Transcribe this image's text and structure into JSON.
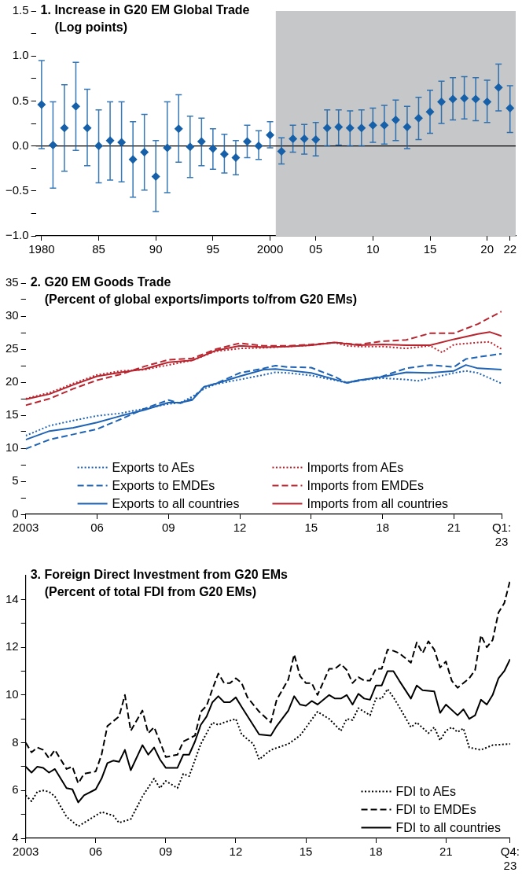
{
  "chart_data": [
    {
      "type": "scatter",
      "title": "1. Increase in G20 EM Global Trade",
      "subtitle": "(Log points)",
      "categories": [
        "1980",
        null,
        null,
        null,
        null,
        "85",
        null,
        null,
        null,
        null,
        "90",
        null,
        null,
        null,
        null,
        "95",
        null,
        null,
        null,
        null,
        "2000",
        null,
        null,
        null,
        "05",
        null,
        null,
        null,
        null,
        "10",
        null,
        null,
        null,
        null,
        "15",
        null,
        null,
        null,
        null,
        "20",
        null,
        "22"
      ],
      "series": [
        {
          "color": "#1560a8",
          "values": [
            0.46,
            0.01,
            0.2,
            0.44,
            0.2,
            0.0,
            0.06,
            0.04,
            -0.15,
            -0.07,
            -0.34,
            -0.02,
            0.19,
            -0.01,
            0.05,
            -0.03,
            -0.09,
            -0.13,
            0.05,
            0.0,
            0.12,
            -0.06,
            0.08,
            0.08,
            0.07,
            0.2,
            0.21,
            0.2,
            0.2,
            0.23,
            0.23,
            0.29,
            0.21,
            0.31,
            0.38,
            0.49,
            0.52,
            0.53,
            0.52,
            0.49,
            0.65,
            0.42
          ],
          "errors": [
            [
              -0.03,
              0.95
            ],
            [
              -0.47,
              0.49
            ],
            [
              -0.28,
              0.68
            ],
            [
              -0.05,
              0.93
            ],
            [
              -0.22,
              0.63
            ],
            [
              -0.41,
              0.4
            ],
            [
              -0.38,
              0.49
            ],
            [
              -0.4,
              0.49
            ],
            [
              -0.57,
              0.27
            ],
            [
              -0.49,
              0.35
            ],
            [
              -0.73,
              0.06
            ],
            [
              -0.52,
              0.49
            ],
            [
              -0.18,
              0.57
            ],
            [
              -0.35,
              0.33
            ],
            [
              -0.22,
              0.31
            ],
            [
              -0.26,
              0.19
            ],
            [
              -0.3,
              0.13
            ],
            [
              -0.32,
              0.06
            ],
            [
              -0.13,
              0.23
            ],
            [
              -0.15,
              0.17
            ],
            [
              -0.02,
              0.27
            ],
            [
              -0.2,
              0.09
            ],
            [
              -0.07,
              0.23
            ],
            [
              -0.09,
              0.24
            ],
            [
              -0.11,
              0.26
            ],
            [
              0.0,
              0.4
            ],
            [
              0.01,
              0.4
            ],
            [
              0.0,
              0.39
            ],
            [
              0.0,
              0.4
            ],
            [
              0.04,
              0.42
            ],
            [
              0.02,
              0.45
            ],
            [
              0.06,
              0.51
            ],
            [
              -0.03,
              0.44
            ],
            [
              0.07,
              0.54
            ],
            [
              0.14,
              0.62
            ],
            [
              0.25,
              0.72
            ],
            [
              0.29,
              0.76
            ],
            [
              0.3,
              0.77
            ],
            [
              0.28,
              0.76
            ],
            [
              0.26,
              0.73
            ],
            [
              0.39,
              0.91
            ],
            [
              0.15,
              0.67
            ]
          ]
        }
      ],
      "marker": "diamond",
      "grid": false,
      "legend": false,
      "ylim": [
        -1,
        1.5
      ],
      "yticks": [
        {
          "value": -1,
          "label": "−1.0"
        },
        {
          "value": -0.75,
          "label": null
        },
        {
          "value": -0.5,
          "label": "−0.5"
        },
        {
          "value": -0.25,
          "label": null
        },
        {
          "value": 0,
          "label": "0.0"
        },
        {
          "value": 0.25,
          "label": null
        },
        0.5,
        {
          "value": 0.75,
          "label": null
        },
        {
          "value": 1,
          "label": "1.0"
        },
        {
          "value": 1.25,
          "label": null
        },
        1.5
      ],
      "ref_lines": [
        {
          "axis": "y",
          "value": 0,
          "color": "#000000"
        }
      ],
      "bands": [
        {
          "axis": "x",
          "from": "2000",
          "to": "22",
          "color": "#c6c7c9"
        }
      ]
    },
    {
      "type": "line",
      "title": "2. G20 EM Goods Trade",
      "subtitle": "(Percent of global exports/imports to/from G20 EMs)",
      "series": [
        {
          "name": "Exports to AEs",
          "color": "#1f63b4",
          "line_style": "dotted",
          "x": [
            2003,
            2004,
            2005,
            2006,
            2007,
            2008,
            2009,
            2009.5,
            2010,
            2010.5,
            2011,
            2012,
            2013,
            2013.5,
            2014,
            2015,
            2016,
            2016.5,
            2017,
            2018,
            2019,
            2019.5,
            2020,
            2021,
            2021.5,
            2022,
            2023
          ],
          "values": [
            11.9,
            13.4,
            14.2,
            14.9,
            15.3,
            16.0,
            16.7,
            16.9,
            17.8,
            19.0,
            19.7,
            20.4,
            21.1,
            21.5,
            21.4,
            21.0,
            20.3,
            19.9,
            20.3,
            20.6,
            20.4,
            20.2,
            20.6,
            21.4,
            21.7,
            21.4,
            19.8
          ]
        },
        {
          "name": "Exports to EMDEs",
          "color": "#1f63b4",
          "line_style": "dashed",
          "x": [
            2003,
            2004,
            2005,
            2006,
            2007,
            2008,
            2009,
            2009.5,
            2010,
            2010.5,
            2011,
            2012,
            2013,
            2013.5,
            2014,
            2015,
            2016,
            2016.5,
            2017,
            2018,
            2019,
            2020,
            2021,
            2021.5,
            2022,
            2023
          ],
          "values": [
            9.9,
            11.3,
            12.1,
            12.9,
            14.4,
            16.0,
            17.3,
            16.8,
            17.5,
            19.3,
            19.8,
            21.4,
            22.1,
            22.5,
            22.3,
            22.2,
            20.8,
            19.9,
            20.2,
            20.9,
            22.1,
            22.6,
            22.3,
            23.5,
            23.8,
            24.3
          ]
        },
        {
          "name": "Exports to all countries",
          "color": "#1f63b4",
          "line_style": "solid",
          "x": [
            2003,
            2004,
            2005,
            2006,
            2007,
            2008,
            2009,
            2009.5,
            2010,
            2010.5,
            2011,
            2012,
            2013,
            2013.5,
            2014,
            2015,
            2016,
            2016.5,
            2017,
            2018,
            2019,
            2020,
            2021,
            2021.5,
            2022,
            2023
          ],
          "values": [
            11.3,
            12.6,
            13.1,
            13.9,
            14.9,
            15.8,
            16.9,
            16.9,
            17.3,
            19.3,
            19.8,
            20.9,
            21.9,
            22.0,
            21.8,
            21.4,
            20.4,
            19.9,
            20.3,
            20.8,
            21.5,
            21.4,
            21.7,
            22.6,
            22.1,
            21.9
          ]
        },
        {
          "name": "Imports from AEs",
          "color": "#b8252f",
          "line_style": "dotted",
          "x": [
            2003,
            2004,
            2005,
            2006,
            2007,
            2008,
            2009,
            2010,
            2011,
            2012,
            2013,
            2014,
            2015,
            2016,
            2016.5,
            2017,
            2018,
            2019,
            2020,
            2020.5,
            2021,
            2022,
            2022.5,
            2023
          ],
          "values": [
            17.5,
            18.4,
            19.8,
            21.1,
            21.7,
            21.9,
            22.6,
            23.3,
            24.7,
            25.1,
            25.2,
            25.4,
            25.6,
            26.0,
            25.5,
            25.4,
            25.4,
            25.1,
            25.5,
            24.5,
            25.7,
            26.0,
            26.1,
            25.0
          ]
        },
        {
          "name": "Imports from EMDEs",
          "color": "#b8252f",
          "line_style": "dashed",
          "x": [
            2003,
            2004,
            2005,
            2006,
            2007,
            2008,
            2009,
            2010,
            2011,
            2012,
            2013,
            2014,
            2015,
            2016,
            2017,
            2018,
            2019,
            2020,
            2021,
            2022,
            2023
          ],
          "values": [
            16.5,
            17.5,
            19.0,
            20.3,
            21.2,
            22.4,
            23.4,
            23.6,
            25.0,
            25.9,
            25.5,
            25.5,
            25.7,
            26.0,
            25.7,
            26.2,
            26.4,
            27.4,
            27.4,
            28.8,
            30.7
          ]
        },
        {
          "name": "Imports from all countries",
          "color": "#b8252f",
          "line_style": "solid",
          "x": [
            2003,
            2004,
            2005,
            2006,
            2007,
            2008,
            2009,
            2010,
            2011,
            2012,
            2013,
            2014,
            2015,
            2016,
            2017,
            2018,
            2019,
            2020,
            2021,
            2022,
            2022.5,
            2023
          ],
          "values": [
            17.4,
            18.2,
            19.6,
            20.9,
            21.5,
            22.0,
            23.0,
            23.3,
            24.8,
            25.5,
            25.3,
            25.4,
            25.6,
            26.0,
            25.6,
            25.7,
            25.6,
            25.6,
            26.5,
            27.3,
            27.6,
            27.0
          ]
        }
      ],
      "grid": false,
      "legend": "bottom",
      "xlim": [
        2003,
        2023
      ],
      "xticks": [
        {
          "value": 2003,
          "label": "2003"
        },
        {
          "value": 2006,
          "label": "06"
        },
        {
          "value": 2009,
          "label": "09"
        },
        {
          "value": 2012,
          "label": "12"
        },
        {
          "value": 2015,
          "label": "15"
        },
        {
          "value": 2018,
          "label": "18"
        },
        {
          "value": 2021,
          "label": "21"
        },
        {
          "value": 2023,
          "label": "Q1: 23"
        }
      ],
      "ylim": [
        0,
        35
      ],
      "yticks": [
        0,
        {
          "value": 2.5,
          "label": null
        },
        5,
        {
          "value": 7.5,
          "label": null
        },
        10,
        {
          "value": 12.5,
          "label": null
        },
        15,
        {
          "value": 17.5,
          "label": null
        },
        20,
        {
          "value": 22.5,
          "label": null
        },
        25,
        {
          "value": 27.5,
          "label": null
        },
        30,
        {
          "value": 32.5,
          "label": null
        },
        35
      ]
    },
    {
      "type": "line",
      "title": "3. Foreign Direct Investment from G20 EMs",
      "subtitle": "(Percent of total FDI from G20 EMs)",
      "series": [
        {
          "name": "FDI to AEs",
          "color": "#000000",
          "line_style": "dotted",
          "x": [
            2003,
            2003.25,
            2003.5,
            2003.75,
            2004,
            2004.25,
            2004.75,
            2005.25,
            2005.5,
            2006,
            2006.25,
            2006.75,
            2007,
            2007.5,
            2008,
            2008.5,
            2008.75,
            2009,
            2009.5,
            2009.75,
            2010,
            2010.5,
            2011,
            2011.25,
            2011.5,
            2012,
            2012.25,
            2012.75,
            2013,
            2013.5,
            2014.25,
            2014.75,
            2015.5,
            2016,
            2016.5,
            2016.75,
            2017,
            2017.25,
            2017.75,
            2018,
            2018.25,
            2018.5,
            2018.75,
            2019,
            2019.5,
            2019.75,
            2020.25,
            2020.5,
            2020.75,
            2021,
            2021.25,
            2021.5,
            2021.75,
            2022,
            2022.5,
            2023,
            2023.75
          ],
          "values": [
            5.8,
            5.55,
            5.95,
            6.0,
            5.95,
            5.75,
            4.9,
            4.5,
            4.65,
            4.95,
            5.1,
            4.95,
            4.65,
            4.8,
            5.75,
            6.5,
            6.1,
            6.4,
            6.1,
            6.7,
            6.6,
            7.95,
            8.85,
            8.75,
            8.85,
            9.0,
            8.35,
            7.95,
            7.3,
            7.7,
            7.95,
            8.3,
            9.3,
            9.0,
            8.5,
            9.0,
            8.95,
            9.45,
            9.15,
            9.85,
            9.85,
            10.25,
            9.9,
            9.5,
            8.65,
            8.85,
            8.4,
            8.65,
            8.1,
            8.5,
            8.65,
            8.45,
            8.6,
            7.8,
            7.7,
            7.9,
            7.95
          ]
        },
        {
          "name": "FDI to EMDEs",
          "color": "#000000",
          "line_style": "dashed",
          "x": [
            2003,
            2003.25,
            2003.5,
            2003.75,
            2004,
            2004.25,
            2004.75,
            2005,
            2005.25,
            2005.5,
            2006,
            2006.25,
            2006.5,
            2007,
            2007.25,
            2007.5,
            2008,
            2008.25,
            2008.5,
            2008.75,
            2009,
            2009.5,
            2009.75,
            2010.25,
            2010.5,
            2010.75,
            2011,
            2011.25,
            2011.5,
            2011.75,
            2012,
            2012.25,
            2012.5,
            2013,
            2013.5,
            2013.75,
            2014.25,
            2014.5,
            2014.75,
            2015,
            2015.25,
            2015.5,
            2016,
            2016.25,
            2016.5,
            2016.75,
            2017,
            2017.25,
            2017.5,
            2017.75,
            2018,
            2018.25,
            2018.5,
            2018.75,
            2019,
            2019.5,
            2019.75,
            2020,
            2020.25,
            2020.5,
            2020.75,
            2021,
            2021.25,
            2021.5,
            2022,
            2022.25,
            2022.5,
            2022.75,
            2023,
            2023.25,
            2023.5,
            2023.75
          ],
          "values": [
            8.0,
            7.6,
            7.8,
            7.7,
            7.35,
            7.7,
            6.9,
            7.0,
            6.3,
            6.7,
            6.8,
            7.5,
            8.7,
            9.1,
            10.0,
            8.5,
            9.35,
            8.4,
            8.65,
            8.05,
            7.4,
            7.5,
            8.05,
            8.3,
            9.3,
            9.55,
            10.25,
            10.9,
            10.5,
            10.5,
            10.7,
            10.5,
            9.9,
            9.3,
            8.85,
            9.8,
            10.65,
            11.7,
            10.8,
            10.5,
            10.5,
            10.0,
            11.1,
            11.1,
            11.3,
            11.05,
            10.5,
            10.75,
            10.6,
            10.6,
            11.1,
            11.1,
            11.9,
            11.85,
            11.75,
            11.35,
            12.2,
            11.75,
            12.25,
            11.9,
            11.15,
            11.4,
            10.6,
            10.3,
            10.7,
            11.05,
            12.5,
            12.0,
            12.3,
            13.45,
            13.85,
            14.8
          ]
        },
        {
          "name": "FDI to all countries",
          "color": "#000000",
          "line_style": "solid",
          "x": [
            2003,
            2003.25,
            2003.5,
            2003.75,
            2004,
            2004.25,
            2004.75,
            2005,
            2005.25,
            2005.5,
            2006,
            2006.25,
            2006.5,
            2006.75,
            2007,
            2007.25,
            2007.5,
            2008,
            2008.25,
            2008.5,
            2008.75,
            2009,
            2009.5,
            2009.75,
            2010,
            2010.25,
            2010.5,
            2010.75,
            2011,
            2011.25,
            2011.5,
            2011.75,
            2012,
            2012.25,
            2013,
            2013.5,
            2013.75,
            2014.25,
            2014.5,
            2014.75,
            2015,
            2015.25,
            2015.5,
            2016,
            2016.25,
            2016.5,
            2016.75,
            2017,
            2017.25,
            2017.5,
            2017.75,
            2018,
            2018.25,
            2018.5,
            2018.75,
            2019,
            2019.5,
            2019.75,
            2020,
            2020.5,
            2020.75,
            2021,
            2021.5,
            2021.75,
            2022,
            2022.25,
            2022.5,
            2022.75,
            2023,
            2023.25,
            2023.5,
            2023.75
          ],
          "values": [
            7.0,
            6.75,
            7.0,
            6.95,
            6.75,
            6.9,
            6.1,
            6.05,
            5.5,
            5.8,
            6.05,
            6.5,
            7.15,
            7.25,
            7.2,
            7.7,
            6.85,
            7.9,
            7.5,
            7.8,
            7.3,
            6.95,
            6.95,
            7.5,
            7.5,
            8.05,
            8.75,
            9.1,
            9.7,
            9.95,
            9.7,
            9.7,
            9.9,
            9.5,
            8.35,
            8.3,
            8.7,
            9.35,
            9.95,
            9.6,
            9.55,
            9.75,
            9.6,
            10.0,
            9.85,
            9.85,
            10.0,
            9.6,
            10.05,
            9.85,
            9.8,
            10.4,
            10.4,
            11.0,
            11.0,
            10.6,
            9.85,
            10.4,
            10.2,
            10.15,
            9.25,
            9.6,
            9.15,
            9.4,
            9.0,
            9.15,
            9.8,
            9.6,
            10.0,
            10.7,
            11.0,
            11.5
          ]
        }
      ],
      "grid": false,
      "legend": "bottom right",
      "xlim": [
        2003,
        2023.75
      ],
      "xticks": [
        {
          "value": 2003,
          "label": "2003"
        },
        {
          "value": 2006,
          "label": "06"
        },
        {
          "value": 2009,
          "label": "09"
        },
        {
          "value": 2012,
          "label": "12"
        },
        {
          "value": 2015,
          "label": "15"
        },
        {
          "value": 2018,
          "label": "18"
        },
        {
          "value": 2021,
          "label": "21"
        },
        {
          "value": 2023.75,
          "label": "Q4: 23"
        }
      ],
      "ylim": [
        4,
        15
      ],
      "yticks": [
        4,
        {
          "value": 5,
          "label": null
        },
        6,
        {
          "value": 7,
          "label": null
        },
        8,
        {
          "value": 9,
          "label": null
        },
        10,
        {
          "value": 11,
          "label": null
        },
        12,
        {
          "value": 13,
          "label": null
        },
        14
      ]
    }
  ]
}
